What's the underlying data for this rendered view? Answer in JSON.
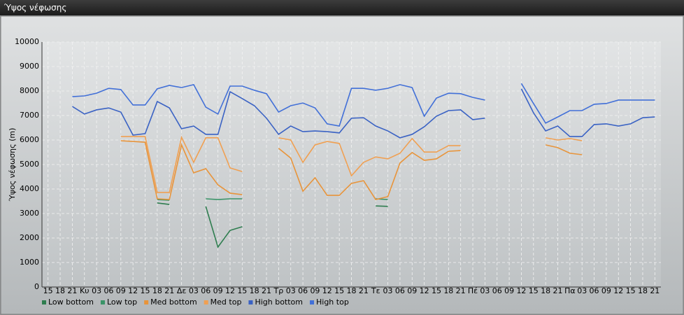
{
  "window_title": "Ύψος νέφωσης",
  "chart_data": {
    "type": "line",
    "ylabel": "Ύψος νέφωσης (m)",
    "categories": [
      "15",
      "18",
      "21",
      "Κυ",
      "03",
      "06",
      "09",
      "12",
      "15",
      "18",
      "21",
      "Δε",
      "03",
      "06",
      "09",
      "12",
      "15",
      "18",
      "21",
      "Τρ",
      "03",
      "06",
      "09",
      "12",
      "15",
      "18",
      "21",
      "Τε",
      "03",
      "06",
      "09",
      "12",
      "15",
      "18",
      "21",
      "Πέ",
      "03",
      "06",
      "09",
      "12",
      "15",
      "18",
      "21",
      "Πα",
      "03",
      "06",
      "09",
      "12",
      "15",
      "18",
      "21"
    ],
    "ylim": [
      0,
      10000
    ],
    "yticks": [
      0,
      1000,
      2000,
      3000,
      4000,
      5000,
      6000,
      7000,
      8000,
      9000,
      10000
    ],
    "grid": true,
    "legend": "bottom-left",
    "series": [
      {
        "name": "Low bottom",
        "color": "#2e7d4f",
        "values": [
          null,
          null,
          null,
          null,
          null,
          null,
          null,
          null,
          null,
          3430,
          3370,
          null,
          null,
          3290,
          1630,
          2310,
          2460,
          null,
          null,
          null,
          null,
          null,
          null,
          null,
          null,
          null,
          null,
          3310,
          3290,
          null,
          null,
          null,
          null,
          null,
          null,
          null,
          null,
          null,
          null,
          null,
          null,
          null,
          null,
          null,
          null,
          null,
          null,
          null,
          null,
          null,
          null
        ]
      },
      {
        "name": "Low top",
        "color": "#3a9468",
        "values": [
          null,
          null,
          null,
          null,
          null,
          null,
          null,
          null,
          null,
          3570,
          3540,
          null,
          null,
          3600,
          3570,
          3600,
          3600,
          null,
          null,
          null,
          null,
          null,
          null,
          null,
          null,
          null,
          null,
          3600,
          3570,
          null,
          null,
          null,
          null,
          null,
          null,
          null,
          null,
          null,
          null,
          null,
          null,
          null,
          null,
          null,
          null,
          null,
          null,
          null,
          null,
          null,
          null
        ]
      },
      {
        "name": "Med bottom",
        "color": "#e8943a",
        "values": [
          null,
          null,
          null,
          null,
          null,
          null,
          5970,
          5940,
          5910,
          3600,
          3570,
          5800,
          4660,
          4830,
          4170,
          3830,
          3770,
          null,
          null,
          5660,
          5260,
          3910,
          4460,
          3740,
          3740,
          4230,
          4340,
          3570,
          3690,
          5060,
          5490,
          5170,
          5230,
          5540,
          5570,
          null,
          null,
          null,
          null,
          null,
          null,
          5800,
          5690,
          5460,
          5400,
          null,
          null,
          null,
          null,
          null,
          null
        ]
      },
      {
        "name": "Med top",
        "color": "#f0a052",
        "values": [
          null,
          null,
          null,
          null,
          null,
          null,
          6140,
          6140,
          6140,
          3860,
          3860,
          6110,
          5090,
          6090,
          6090,
          4860,
          4710,
          null,
          null,
          6090,
          6000,
          5090,
          5800,
          5940,
          5860,
          4540,
          5090,
          5310,
          5230,
          5460,
          6060,
          5510,
          5510,
          5770,
          5770,
          null,
          null,
          null,
          null,
          null,
          null,
          6090,
          6000,
          6060,
          5970,
          null,
          null,
          null,
          null,
          null,
          null
        ]
      },
      {
        "name": "High bottom",
        "color": "#3a62c4",
        "values": [
          null,
          null,
          7370,
          7060,
          7230,
          7310,
          7140,
          6200,
          6260,
          7570,
          7310,
          6460,
          6570,
          6230,
          6230,
          7970,
          7690,
          7400,
          6890,
          6230,
          6570,
          6340,
          6370,
          6340,
          6290,
          6890,
          6910,
          6570,
          6370,
          6090,
          6230,
          6540,
          6970,
          7200,
          7230,
          6830,
          6890,
          null,
          null,
          8090,
          7110,
          6370,
          6570,
          6140,
          6140,
          6630,
          6660,
          6570,
          6660,
          6910,
          6940
        ]
      },
      {
        "name": "High top",
        "color": "#4270d8",
        "values": [
          null,
          null,
          7770,
          7800,
          7910,
          8110,
          8060,
          7430,
          7430,
          8090,
          8230,
          8140,
          8260,
          7340,
          7060,
          8200,
          8200,
          8030,
          7890,
          7140,
          7400,
          7510,
          7310,
          6660,
          6570,
          8110,
          8110,
          8030,
          8110,
          8260,
          8140,
          6970,
          7710,
          7910,
          7890,
          7740,
          7630,
          null,
          null,
          8310,
          7490,
          6690,
          6940,
          7200,
          7200,
          7460,
          7490,
          7630,
          7630,
          7630,
          7630
        ]
      }
    ]
  }
}
